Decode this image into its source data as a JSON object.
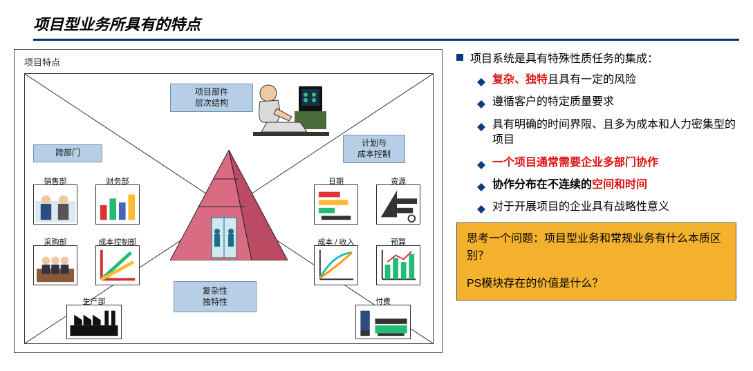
{
  "title": "项目型业务所具有的特点",
  "colors": {
    "title_underline": "#003366",
    "chip_bg": "#b7cfe6",
    "chip_border": "#6f92b5",
    "lead_square": "#0b3a82",
    "diamond": "#0b3a82",
    "highlight_text": "#d11",
    "callout_bg": "#f3b12d",
    "callout_border": "#555555",
    "pyramid_face": "#d96b82",
    "pyramid_side": "#bb4a63",
    "pyramid_outline": "#222222",
    "diagram_border": "#333333",
    "x_lines": "#333333"
  },
  "diagram": {
    "label": "项目特点",
    "chips": {
      "top": "项目部件\n层次结构",
      "left": "跨部门",
      "right": "计划与\n成本控制",
      "bottom": "复杂性\n独特性"
    },
    "left_icons": [
      {
        "cap": "销售部",
        "kind": "people"
      },
      {
        "cap": "财务部",
        "kind": "barchart"
      },
      {
        "cap": "采购部",
        "kind": "meeting"
      },
      {
        "cap": "成本控制部",
        "kind": "costgraph"
      },
      {
        "cap": "生产部",
        "kind": "factory"
      }
    ],
    "right_icons": [
      {
        "cap": "日期",
        "kind": "gantt"
      },
      {
        "cap": "资源",
        "kind": "resource"
      },
      {
        "cap": "成本 / 收入",
        "kind": "curve"
      },
      {
        "cap": "预算",
        "kind": "budget"
      },
      {
        "cap": "付费",
        "kind": "billing"
      }
    ],
    "computer_user_icon": "person-at-desk"
  },
  "right": {
    "lead": "项目系统是具有特殊性质任务的集成：",
    "bullets": [
      {
        "html": "<span class='red'>复杂、独特</span>且具有一定的风险"
      },
      {
        "html": "遵循客户的特定质量要求"
      },
      {
        "html": "具有明确的时间界限、且多为成本和人力密集型的项目"
      },
      {
        "html": "<span class='red'>一个项目通常需要企业多部门协作</span>"
      },
      {
        "html": "<span class='bold'>协作分布在不连续的</span><span class='red'>空间和时间</span>"
      },
      {
        "html": "对于开展项目的企业具有战略性意义"
      }
    ],
    "callout": {
      "line1": "思考一个问题：项目型业务和常规业务有什么本质区别？",
      "line2": "PS模块存在的价值是什么？"
    }
  }
}
